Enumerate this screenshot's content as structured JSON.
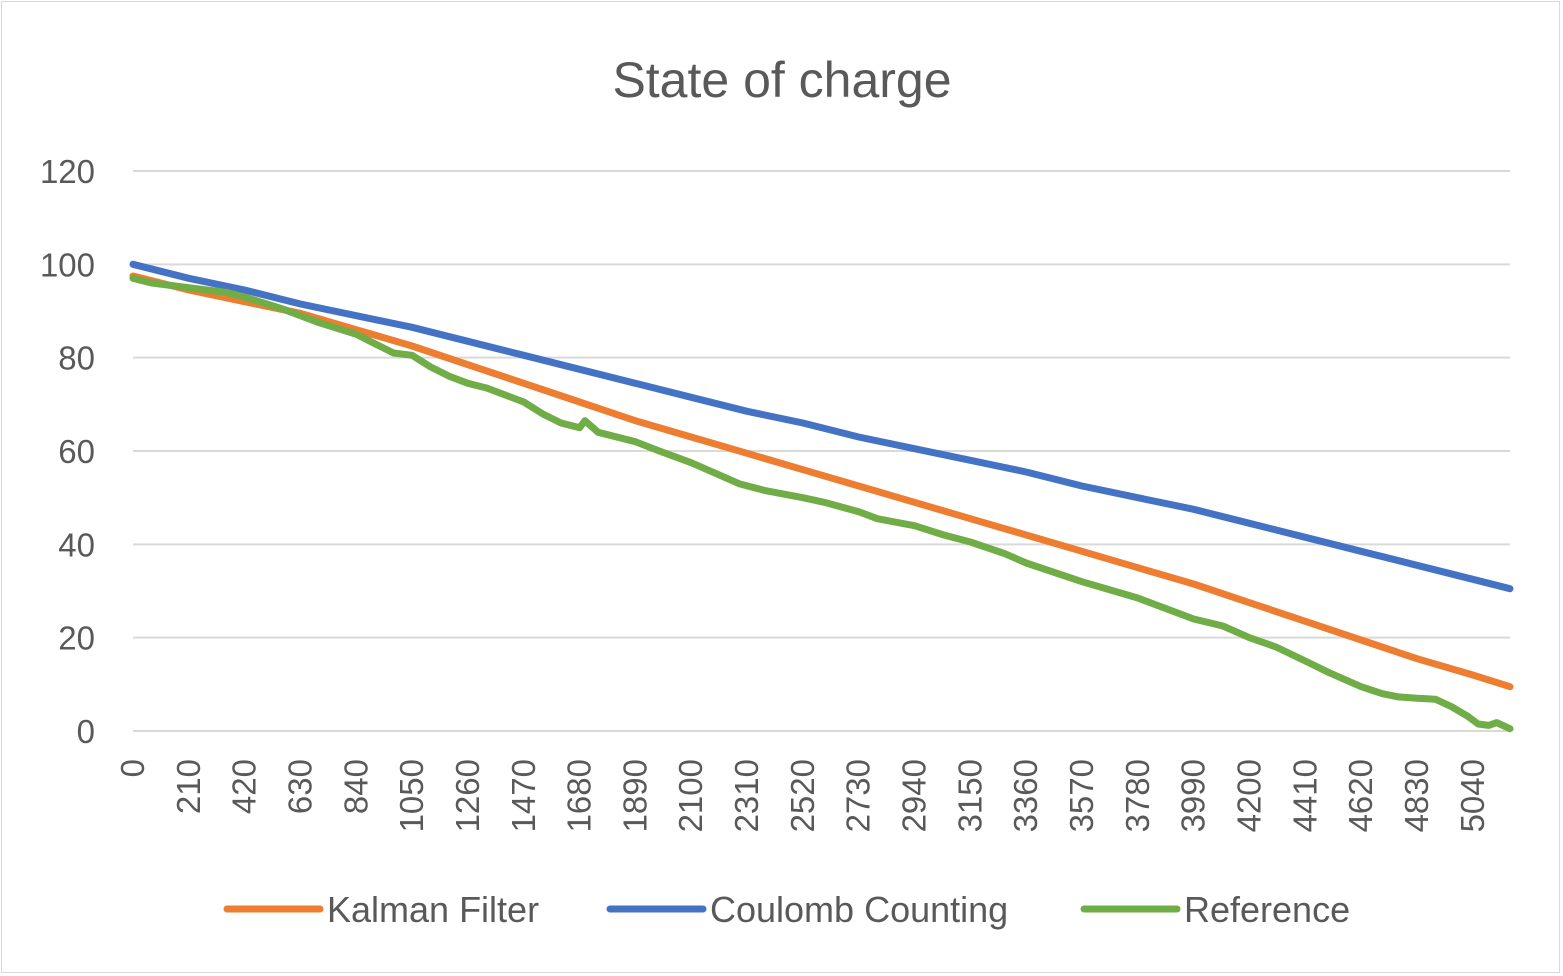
{
  "chart_data": {
    "type": "line",
    "title": "State of charge",
    "xlabel": "",
    "ylabel": "",
    "ylim": [
      0,
      120
    ],
    "yticks": [
      0,
      20,
      40,
      60,
      80,
      100,
      120
    ],
    "xlim": [
      0,
      5180
    ],
    "xticks": [
      0,
      210,
      420,
      630,
      840,
      1050,
      1260,
      1470,
      1680,
      1890,
      2100,
      2310,
      2520,
      2730,
      2940,
      3150,
      3360,
      3570,
      3780,
      3990,
      4200,
      4410,
      4620,
      4830,
      5040
    ],
    "grid": true,
    "legend_position": "bottom",
    "series": [
      {
        "name": "Kalman Filter",
        "color": "#ED7D31",
        "x": [
          0,
          210,
          420,
          630,
          840,
          1050,
          1260,
          1470,
          1680,
          1890,
          2100,
          2310,
          2520,
          2730,
          2940,
          3150,
          3360,
          3570,
          3780,
          3990,
          4200,
          4410,
          4620,
          4830,
          5040,
          5180
        ],
        "values": [
          97.5,
          94.5,
          92,
          89.5,
          86,
          82.5,
          78.5,
          74.5,
          70.5,
          66.5,
          63,
          59.5,
          56,
          52.5,
          49,
          45.5,
          42,
          38.5,
          35,
          31.5,
          27.5,
          23.5,
          19.5,
          15.5,
          12,
          9.5
        ]
      },
      {
        "name": "Coulomb Counting",
        "color": "#4472C4",
        "x": [
          0,
          210,
          420,
          630,
          840,
          1050,
          1260,
          1470,
          1680,
          1890,
          2100,
          2310,
          2520,
          2730,
          2940,
          3150,
          3360,
          3570,
          3780,
          3990,
          4200,
          4410,
          4620,
          4830,
          5040,
          5180
        ],
        "values": [
          100,
          97,
          94.5,
          91.5,
          89,
          86.5,
          83.5,
          80.5,
          77.5,
          74.5,
          71.5,
          68.5,
          66,
          63,
          60.5,
          58,
          55.5,
          52.5,
          50,
          47.5,
          44.5,
          41.5,
          38.5,
          35.5,
          32.5,
          30.5
        ]
      },
      {
        "name": "Reference",
        "color": "#70AD47",
        "x": [
          0,
          70,
          210,
          350,
          420,
          560,
          700,
          840,
          910,
          980,
          1050,
          1120,
          1190,
          1260,
          1330,
          1400,
          1470,
          1540,
          1610,
          1680,
          1700,
          1750,
          1890,
          1980,
          2100,
          2200,
          2280,
          2380,
          2520,
          2600,
          2730,
          2800,
          2940,
          3050,
          3150,
          3280,
          3360,
          3570,
          3780,
          3990,
          4100,
          4200,
          4300,
          4410,
          4500,
          4620,
          4700,
          4760,
          4830,
          4900,
          4960,
          5020,
          5060,
          5100,
          5130,
          5160,
          5180
        ],
        "values": [
          97,
          96,
          95,
          94,
          93,
          90.5,
          87.5,
          85,
          83,
          81,
          80.5,
          78,
          76,
          74.5,
          73.5,
          72,
          70.5,
          68,
          66,
          65,
          66.5,
          64,
          62,
          60,
          57.5,
          55,
          53,
          51.5,
          50,
          49,
          47,
          45.5,
          44,
          42,
          40.5,
          38,
          36,
          32,
          28.5,
          24,
          22.5,
          20,
          18,
          15,
          12.5,
          9.5,
          8,
          7.3,
          7,
          6.8,
          5.2,
          3.2,
          1.5,
          1.2,
          1.8,
          1,
          0.5
        ]
      }
    ]
  }
}
